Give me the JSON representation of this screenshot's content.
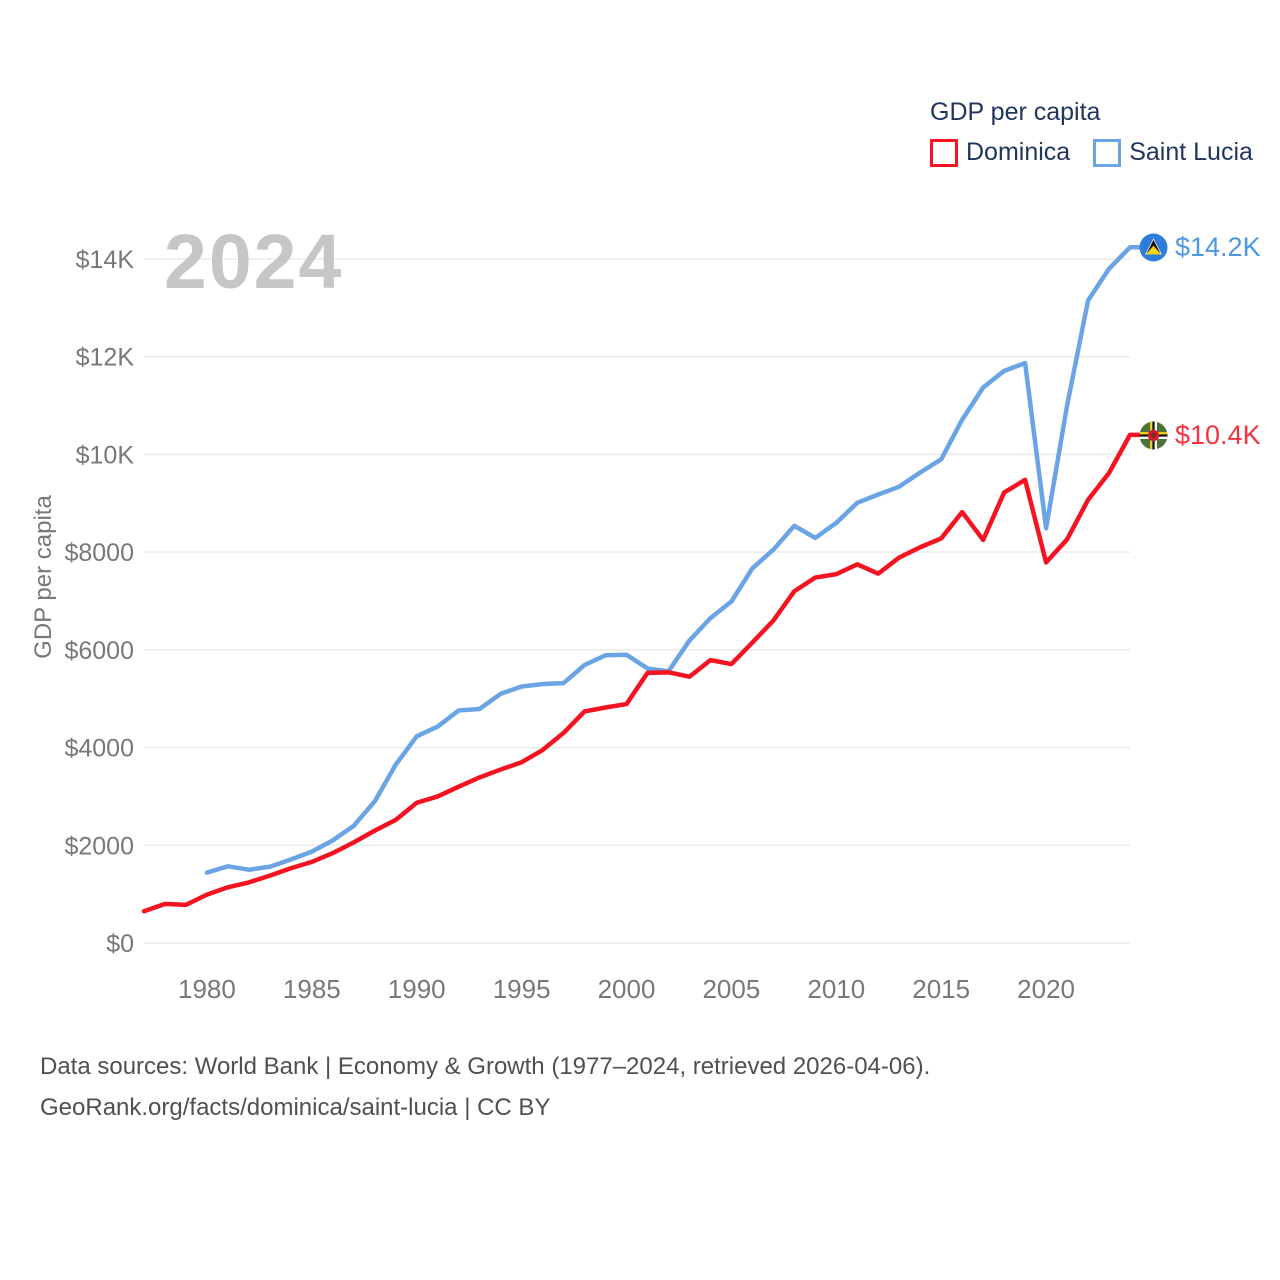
{
  "watermark": "2024",
  "legend": {
    "title": "GDP per capita",
    "items": [
      {
        "label": "Dominica",
        "color": "#f51322"
      },
      {
        "label": "Saint Lucia",
        "color": "#6aa4e4"
      }
    ]
  },
  "y_axis": {
    "title": "GDP per capita",
    "tick_labels": [
      "$0",
      "$2000",
      "$4000",
      "$6000",
      "$8000",
      "$10K",
      "$12K",
      "$14K"
    ],
    "tick_values": [
      0,
      2000,
      4000,
      6000,
      8000,
      10000,
      12000,
      14000
    ]
  },
  "x_axis": {
    "tick_labels": [
      "1980",
      "1985",
      "1990",
      "1995",
      "2000",
      "2005",
      "2010",
      "2015",
      "2020"
    ],
    "tick_values": [
      1980,
      1985,
      1990,
      1995,
      2000,
      2005,
      2010,
      2015,
      2020
    ]
  },
  "end_labels": [
    {
      "series": "Saint Lucia",
      "text": "$14.2K",
      "flag": "saint-lucia-flag"
    },
    {
      "series": "Dominica",
      "text": "$10.4K",
      "flag": "dominica-flag"
    }
  ],
  "footer": {
    "line1": "Data sources: World Bank | Economy & Growth (1977–2024, retrieved 2026-04-06).",
    "line2": "GeoRank.org/facts/dominica/saint-lucia | CC BY"
  },
  "colors": {
    "dominica_line": "#f51322",
    "saint_lucia_line": "#6aa4e4",
    "gridline": "#ebebeb",
    "tick_text": "#76787a",
    "legend_text": "#21365c",
    "watermark_text": "#c4c6c8"
  },
  "chart_data": {
    "type": "line",
    "title": "GDP per capita",
    "xlabel": "",
    "ylabel": "GDP per capita",
    "x_range": [
      1977,
      2024
    ],
    "ylim": [
      0,
      14300
    ],
    "grid": "horizontal",
    "legend_position": "top-right",
    "series": [
      {
        "name": "Dominica",
        "color": "#f51322",
        "x": [
          1977,
          1978,
          1979,
          1980,
          1981,
          1982,
          1983,
          1984,
          1985,
          1986,
          1987,
          1988,
          1989,
          1990,
          1991,
          1992,
          1993,
          1994,
          1995,
          1996,
          1997,
          1998,
          1999,
          2000,
          2001,
          2002,
          2003,
          2004,
          2005,
          2006,
          2007,
          2008,
          2009,
          2010,
          2011,
          2012,
          2013,
          2014,
          2015,
          2016,
          2017,
          2018,
          2019,
          2020,
          2021,
          2022,
          2023,
          2024
        ],
        "values": [
          650,
          800,
          780,
          990,
          1140,
          1240,
          1380,
          1530,
          1660,
          1840,
          2060,
          2300,
          2520,
          2870,
          3000,
          3200,
          3390,
          3550,
          3700,
          3950,
          4300,
          4740,
          4820,
          4890,
          5530,
          5540,
          5450,
          5790,
          5710,
          6150,
          6600,
          7200,
          7480,
          7550,
          7750,
          7560,
          7890,
          8100,
          8280,
          8820,
          8250,
          9220,
          9480,
          7790,
          8260,
          9070,
          9620,
          10400
        ]
      },
      {
        "name": "Saint Lucia",
        "color": "#6aa4e4",
        "x": [
          1980,
          1981,
          1982,
          1983,
          1984,
          1985,
          1986,
          1987,
          1988,
          1989,
          1990,
          1991,
          1992,
          1993,
          1994,
          1995,
          1996,
          1997,
          1998,
          1999,
          2000,
          2001,
          2002,
          2003,
          2004,
          2005,
          2006,
          2007,
          2008,
          2009,
          2010,
          2011,
          2012,
          2013,
          2014,
          2015,
          2016,
          2017,
          2018,
          2019,
          2020,
          2021,
          2022,
          2023,
          2024
        ],
        "values": [
          1440,
          1570,
          1500,
          1560,
          1710,
          1870,
          2100,
          2400,
          2900,
          3650,
          4230,
          4430,
          4760,
          4790,
          5100,
          5250,
          5300,
          5320,
          5690,
          5890,
          5900,
          5620,
          5560,
          6190,
          6650,
          6990,
          7670,
          8050,
          8540,
          8290,
          8600,
          9010,
          9180,
          9340,
          9630,
          9900,
          10710,
          11370,
          11710,
          11870,
          8490,
          11000,
          13150,
          13800,
          14240
        ]
      }
    ],
    "end_values": {
      "Saint Lucia": "$14.2K",
      "Dominica": "$10.4K"
    }
  }
}
